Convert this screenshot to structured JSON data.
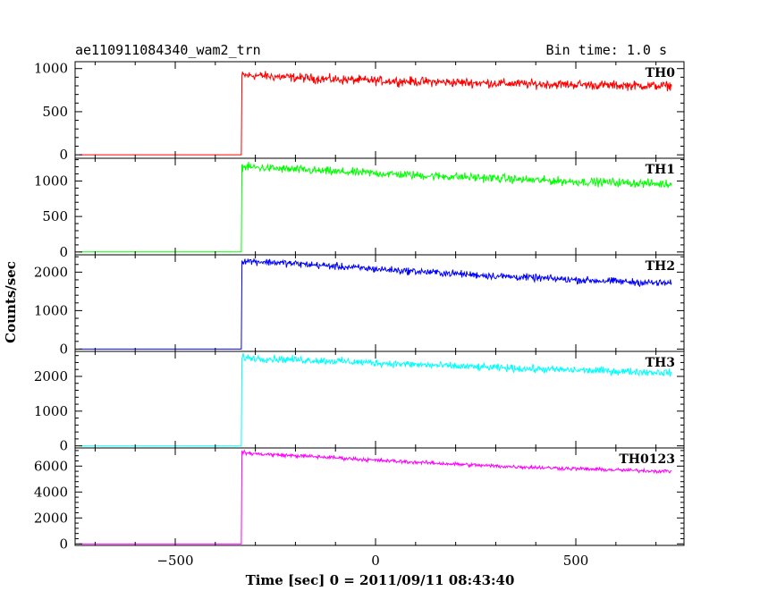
{
  "header": {
    "title": "ae110911084340_wam2_trn",
    "bin_time": "Bin time: 1.0 s"
  },
  "chart_data": {
    "type": "line",
    "title": "ae110911084340_wam2_trn",
    "subtitle": "Bin time: 1.0 s",
    "xlabel": "Time [sec] 0 = 2011/09/11 08:43:40",
    "ylabel": "Counts/sec",
    "xlim": [
      -750,
      770
    ],
    "xticks": [
      -500,
      0,
      500
    ],
    "xtick_labels": [
      "−500",
      "0",
      "500"
    ],
    "grid": false,
    "legend": "none",
    "panels": [
      {
        "name": "TH0",
        "color": "#ff0000",
        "ylim": [
          -40,
          1080
        ],
        "yticks": [
          0,
          500,
          1000
        ],
        "x": [
          -740,
          -335,
          -334,
          -300,
          -200,
          -100,
          0,
          100,
          200,
          300,
          400,
          500,
          600,
          700,
          740
        ],
        "y": [
          0,
          0,
          920,
          920,
          895,
          875,
          860,
          850,
          840,
          830,
          820,
          815,
          805,
          800,
          800
        ],
        "noise": 40
      },
      {
        "name": "TH1",
        "color": "#00ff00",
        "ylim": [
          -40,
          1320
        ],
        "yticks": [
          0,
          500,
          1000
        ],
        "x": [
          -740,
          -335,
          -334,
          -300,
          -200,
          -100,
          0,
          100,
          200,
          300,
          400,
          500,
          600,
          700,
          740
        ],
        "y": [
          0,
          0,
          1200,
          1190,
          1160,
          1130,
          1110,
          1080,
          1060,
          1040,
          1010,
          990,
          980,
          960,
          955
        ],
        "noise": 45
      },
      {
        "name": "TH2",
        "color": "#0000ff",
        "ylim": [
          -60,
          2450
        ],
        "yticks": [
          0,
          1000,
          2000
        ],
        "x": [
          -740,
          -335,
          -334,
          -300,
          -200,
          -100,
          0,
          100,
          200,
          300,
          400,
          500,
          600,
          700,
          740
        ],
        "y": [
          0,
          0,
          2300,
          2280,
          2220,
          2150,
          2080,
          2020,
          1960,
          1900,
          1850,
          1800,
          1760,
          1720,
          1710
        ],
        "noise": 70
      },
      {
        "name": "TH3",
        "color": "#00ffff",
        "ylim": [
          -60,
          2720
        ],
        "yticks": [
          0,
          1000,
          2000
        ],
        "x": [
          -740,
          -335,
          -334,
          -300,
          -200,
          -100,
          0,
          100,
          200,
          300,
          400,
          500,
          600,
          700,
          740
        ],
        "y": [
          0,
          0,
          2550,
          2520,
          2480,
          2440,
          2390,
          2340,
          2290,
          2250,
          2210,
          2180,
          2150,
          2120,
          2110
        ],
        "noise": 80
      },
      {
        "name": "TH0123",
        "color": "#ff00ff",
        "ylim": [
          -120,
          7400
        ],
        "yticks": [
          0,
          2000,
          4000,
          6000
        ],
        "x": [
          -740,
          -335,
          -334,
          -300,
          -200,
          -100,
          0,
          100,
          200,
          300,
          400,
          500,
          600,
          700,
          740
        ],
        "y": [
          0,
          0,
          7050,
          6950,
          6800,
          6650,
          6450,
          6300,
          6150,
          6000,
          5900,
          5800,
          5700,
          5620,
          5600
        ],
        "noise": 110
      }
    ]
  }
}
